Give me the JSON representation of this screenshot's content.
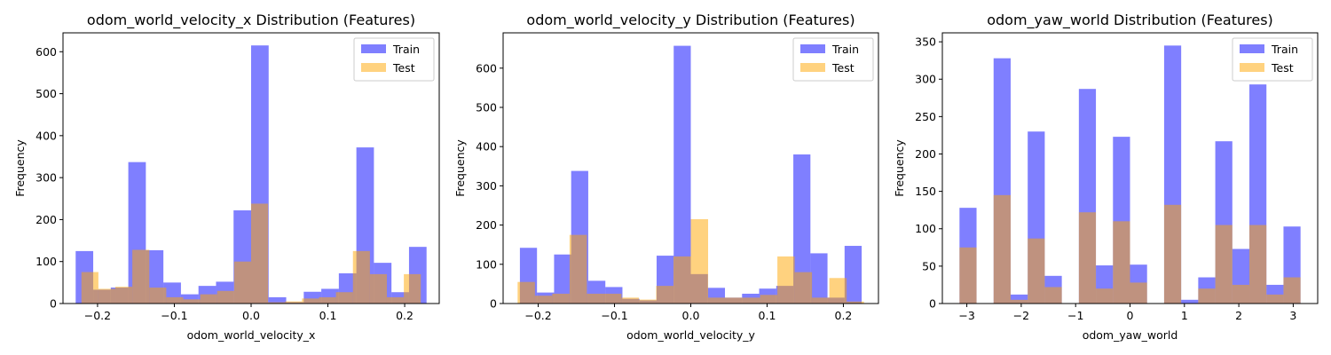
{
  "chart_data": [
    {
      "type": "bar",
      "title": "odom_world_velocity_x Distribution (Features)",
      "xlabel": "odom_world_velocity_x",
      "ylabel": "Frequency",
      "xlim": [
        -0.245,
        0.245
      ],
      "ylim": [
        0,
        645
      ],
      "xticks": [
        -0.2,
        -0.1,
        0.0,
        0.1,
        0.2
      ],
      "xtick_labels": [
        "−0.2",
        "−0.1",
        "0.0",
        "0.1",
        "0.2"
      ],
      "yticks": [
        0,
        100,
        200,
        300,
        400,
        500,
        600
      ],
      "legend": "top-right",
      "series": [
        {
          "name": "Train",
          "color": "#0000ff",
          "alpha": 0.5,
          "bin_start": -0.2285,
          "bin_width": 0.02285,
          "values": [
            125,
            33,
            38,
            337,
            127,
            50,
            22,
            42,
            52,
            222,
            615,
            15,
            3,
            28,
            35,
            72,
            372,
            97,
            27,
            135
          ]
        },
        {
          "name": "Test",
          "color": "#ffa500",
          "alpha": 0.5,
          "bin_start": -0.221,
          "bin_width": 0.0221,
          "values": [
            75,
            35,
            40,
            128,
            38,
            15,
            10,
            22,
            30,
            100,
            238,
            3,
            5,
            12,
            15,
            27,
            125,
            70,
            15,
            70
          ]
        }
      ]
    },
    {
      "type": "bar",
      "title": "odom_world_velocity_y Distribution (Features)",
      "xlabel": "odom_world_velocity_y",
      "ylabel": "Frequency",
      "xlim": [
        -0.246,
        0.246
      ],
      "ylim": [
        0,
        690
      ],
      "xticks": [
        -0.2,
        -0.1,
        0.0,
        0.1,
        0.2
      ],
      "xtick_labels": [
        "−0.2",
        "−0.1",
        "0.0",
        "0.1",
        "0.2"
      ],
      "yticks": [
        0,
        100,
        200,
        300,
        400,
        500,
        600
      ],
      "legend": "top-right",
      "series": [
        {
          "name": "Train",
          "color": "#0000ff",
          "alpha": 0.5,
          "bin_start": -0.224,
          "bin_width": 0.0224,
          "values": [
            142,
            28,
            125,
            338,
            58,
            42,
            12,
            8,
            122,
            657,
            75,
            40,
            15,
            25,
            38,
            45,
            380,
            128,
            15,
            147
          ]
        },
        {
          "name": "Test",
          "color": "#ffa500",
          "alpha": 0.5,
          "bin_start": -0.227,
          "bin_width": 0.0227,
          "values": [
            55,
            20,
            25,
            175,
            25,
            25,
            15,
            10,
            45,
            120,
            215,
            15,
            15,
            15,
            22,
            120,
            80,
            15,
            65,
            5
          ]
        }
      ]
    },
    {
      "type": "bar",
      "title": "odom_yaw_world Distribution (Features)",
      "xlabel": "odom_yaw_world",
      "ylabel": "Frequency",
      "xlim": [
        -3.45,
        3.45
      ],
      "ylim": [
        0,
        362
      ],
      "xticks": [
        -3,
        -2,
        -1,
        0,
        1,
        2,
        3
      ],
      "xtick_labels": [
        "−3",
        "−2",
        "−1",
        "0",
        "1",
        "2",
        "3"
      ],
      "yticks": [
        0,
        50,
        100,
        150,
        200,
        250,
        300,
        350
      ],
      "legend": "top-right",
      "series": [
        {
          "name": "Train",
          "color": "#0000ff",
          "alpha": 0.5,
          "bin_start": -3.1347,
          "bin_width": 0.31347,
          "values": [
            128,
            0,
            328,
            12,
            230,
            37,
            0,
            287,
            51,
            223,
            52,
            0,
            345,
            5,
            35,
            217,
            73,
            293,
            25,
            103
          ]
        },
        {
          "name": "Test",
          "color": "#ffa500",
          "alpha": 0.5,
          "bin_start": -3.1347,
          "bin_width": 0.31347,
          "values": [
            75,
            0,
            145,
            5,
            87,
            22,
            0,
            122,
            20,
            110,
            28,
            0,
            132,
            0,
            20,
            105,
            25,
            105,
            12,
            35
          ]
        }
      ]
    }
  ]
}
